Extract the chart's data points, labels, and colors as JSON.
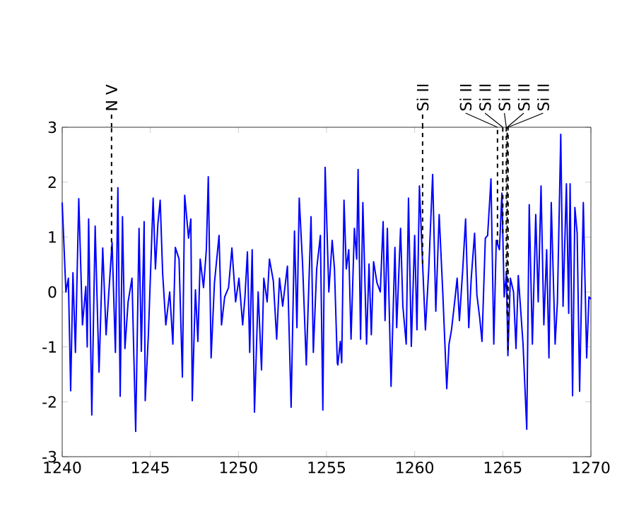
{
  "chart_data": {
    "type": "line",
    "xlim": [
      1240,
      1270
    ],
    "ylim": [
      -3,
      3
    ],
    "xticks": [
      1240,
      1245,
      1250,
      1255,
      1260,
      1265,
      1270
    ],
    "yticks": [
      -3,
      -2,
      -1,
      0,
      1,
      2,
      3
    ],
    "grid": false,
    "marker": "none",
    "line_style": "solid",
    "series": [
      {
        "color": "#0000ff",
        "x": [
          1240.0,
          1240.21,
          1240.35,
          1240.48,
          1240.61,
          1240.75,
          1240.94,
          1241.15,
          1241.34,
          1241.42,
          1241.5,
          1241.68,
          1241.87,
          1242.09,
          1242.3,
          1242.49,
          1242.83,
          1243.02,
          1243.16,
          1243.29,
          1243.42,
          1243.56,
          1243.74,
          1243.96,
          1244.17,
          1244.36,
          1244.49,
          1244.65,
          1244.71,
          1244.89,
          1245.16,
          1245.29,
          1245.43,
          1245.56,
          1245.7,
          1245.88,
          1246.1,
          1246.28,
          1246.42,
          1246.63,
          1246.82,
          1246.95,
          1247.17,
          1247.3,
          1247.38,
          1247.56,
          1247.7,
          1247.83,
          1248.02,
          1248.18,
          1248.29,
          1248.45,
          1248.64,
          1248.9,
          1249.04,
          1249.22,
          1249.44,
          1249.63,
          1249.84,
          1250.03,
          1250.24,
          1250.37,
          1250.51,
          1250.64,
          1250.78,
          1250.91,
          1251.12,
          1251.31,
          1251.44,
          1251.63,
          1251.76,
          1251.98,
          1252.17,
          1252.33,
          1252.51,
          1252.78,
          1252.99,
          1253.18,
          1253.32,
          1253.45,
          1253.64,
          1253.85,
          1254.12,
          1254.25,
          1254.44,
          1254.65,
          1254.79,
          1254.92,
          1255.13,
          1255.32,
          1255.45,
          1255.61,
          1255.64,
          1255.78,
          1255.86,
          1255.99,
          1256.12,
          1256.26,
          1256.39,
          1256.58,
          1256.71,
          1256.79,
          1256.93,
          1257.06,
          1257.27,
          1257.41,
          1257.54,
          1257.67,
          1257.86,
          1258.05,
          1258.21,
          1258.32,
          1258.45,
          1258.66,
          1258.88,
          1258.98,
          1259.2,
          1259.33,
          1259.52,
          1259.65,
          1259.81,
          1260.0,
          1260.13,
          1260.27,
          1260.45,
          1260.61,
          1260.8,
          1261.02,
          1261.2,
          1261.39,
          1261.6,
          1261.82,
          1261.95,
          1262.09,
          1262.27,
          1262.41,
          1262.54,
          1262.73,
          1262.89,
          1263.07,
          1263.21,
          1263.4,
          1263.53,
          1263.69,
          1263.82,
          1264.01,
          1264.14,
          1264.33,
          1264.49,
          1264.63,
          1264.81,
          1264.95,
          1265.08,
          1265.21,
          1265.29,
          1265.43,
          1265.61,
          1265.75,
          1265.88,
          1266.15,
          1266.36,
          1266.5,
          1266.68,
          1266.87,
          1267.01,
          1267.17,
          1267.33,
          1267.49,
          1267.62,
          1267.75,
          1267.97,
          1268.1,
          1268.29,
          1268.42,
          1268.61,
          1268.74,
          1268.82,
          1268.96,
          1269.09,
          1269.22,
          1269.36,
          1269.57,
          1269.76,
          1269.89,
          1270.0
        ],
        "values": [
          1.63,
          0,
          0.25,
          -1.8,
          0.35,
          -1.1,
          1.7,
          -0.6,
          0.1,
          -1.0,
          1.33,
          -2.24,
          1.2,
          -1.46,
          0.8,
          -0.78,
          0.9,
          -1.1,
          1.9,
          -1.9,
          1.37,
          -1.03,
          -0.18,
          0.25,
          -2.54,
          1.16,
          -1.08,
          1.28,
          -1.98,
          -0.78,
          1.71,
          0.42,
          1.24,
          1.67,
          0.34,
          -0.6,
          0,
          -0.95,
          0.81,
          0.6,
          -1.55,
          1.76,
          0.98,
          1.33,
          -1.98,
          0.04,
          -0.9,
          0.6,
          0.08,
          0.77,
          2.1,
          -1.2,
          0.17,
          1.03,
          -0.6,
          -0.09,
          0.08,
          0.8,
          -0.18,
          0.25,
          -0.6,
          -0.09,
          0.73,
          -1.1,
          0.77,
          -2.19,
          0,
          -1.42,
          0.25,
          -0.18,
          0.6,
          0.2,
          -0.86,
          0.25,
          -0.26,
          0.47,
          -2.1,
          1.11,
          -0.65,
          1.71,
          0.51,
          -1.33,
          1.37,
          -1.1,
          0.42,
          1.03,
          -2.15,
          2.27,
          0,
          0.94,
          0.42,
          -1.29,
          -1.33,
          -0.9,
          -1.29,
          1.67,
          0.42,
          0.77,
          -0.86,
          1.16,
          0.6,
          2.23,
          -0.86,
          1.63,
          -0.95,
          0.51,
          -0.78,
          0.55,
          0.17,
          0,
          1.28,
          -0.52,
          1.16,
          -1.72,
          0.81,
          -0.65,
          1.16,
          -0.26,
          -0.95,
          1.71,
          -0.99,
          1.03,
          -0.69,
          1.93,
          0.51,
          -0.69,
          0.42,
          2.14,
          -0.35,
          1.41,
          -0.05,
          -1.76,
          -0.95,
          -0.69,
          -0.18,
          0.25,
          -0.52,
          0.42,
          1.33,
          -0.65,
          0.25,
          1.07,
          -0.05,
          -0.47,
          -0.9,
          0.98,
          1.03,
          2.06,
          -0.95,
          0.94,
          0.77,
          1.8,
          -0.09,
          0.34,
          -1.16,
          0.25,
          0,
          -1.03,
          0.3,
          -0.95,
          -2.5,
          1.59,
          -0.95,
          1.41,
          -0.18,
          1.93,
          -0.6,
          0.77,
          -1.2,
          1.63,
          -0.95,
          -0.18,
          2.87,
          -0.26,
          1.97,
          -0.39,
          1.97,
          -1.89,
          1.54,
          1.07,
          -1.81,
          1.63,
          -1.2,
          -0.09,
          -0.13
        ]
      }
    ],
    "ref_lines": [
      {
        "axis": "x",
        "value": 1242.8,
        "label": "N V",
        "color": "#000000",
        "line_style": "dashed"
      },
      {
        "axis": "x",
        "value": 1260.45,
        "label": "Si II",
        "color": "#000000",
        "line_style": "dashed"
      },
      {
        "axis": "x",
        "value": 1264.7,
        "label": "Si II",
        "color": "#000000",
        "line_style": "dashed"
      },
      {
        "axis": "x",
        "value": 1265.0,
        "label": "Si II",
        "color": "#000000",
        "line_style": "dashed"
      },
      {
        "axis": "x",
        "value": 1265.2,
        "label": "Si II",
        "color": "#000000",
        "line_style": "dashed"
      },
      {
        "axis": "x",
        "value": 1265.25,
        "label": "Si II",
        "color": "#000000",
        "line_style": "dashed"
      },
      {
        "axis": "x",
        "value": 1265.3,
        "label": "Si II",
        "color": "#000000",
        "line_style": "dashed"
      }
    ]
  }
}
